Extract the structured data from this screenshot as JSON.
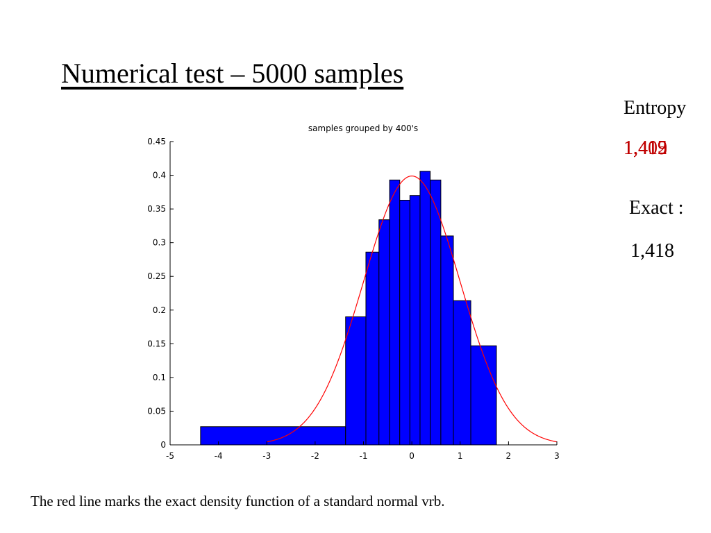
{
  "slide": {
    "title": "Numerical test – 5000 samples",
    "entropy_label": "Entropy",
    "entropy_values": [
      "1,419",
      "1,412",
      "1,415",
      "1,409"
    ],
    "exact_label": "Exact :",
    "exact_value": "1,418",
    "caption": "The red line marks the exact density function of a standard normal vrb."
  },
  "chart_data": {
    "type": "bar",
    "title": "samples grouped by 400's",
    "xlabel": "",
    "ylabel": "",
    "xlim": [
      -5,
      3
    ],
    "ylim": [
      0,
      0.45
    ],
    "xticks": [
      -5,
      -4,
      -3,
      -2,
      -1,
      0,
      1,
      2,
      3
    ],
    "yticks": [
      0,
      0.05,
      0.1,
      0.15,
      0.2,
      0.25,
      0.3,
      0.35,
      0.4,
      0.45
    ],
    "xtick_labels": [
      "-5",
      "-4",
      "-3",
      "-2",
      "-1",
      "0",
      "1",
      "2",
      "3"
    ],
    "ytick_labels": [
      "0",
      "0.05",
      "0.1",
      "0.15",
      "0.2",
      "0.25",
      "0.3",
      "0.35",
      "0.4",
      "0.45"
    ],
    "bar_color": "#0000ff",
    "line_color": "#ff0000",
    "bins": [
      {
        "x0": -4.37,
        "x1": -1.37,
        "value": 0.027
      },
      {
        "x0": -1.37,
        "x1": -0.95,
        "value": 0.19
      },
      {
        "x0": -0.95,
        "x1": -0.68,
        "value": 0.286
      },
      {
        "x0": -0.68,
        "x1": -0.46,
        "value": 0.334
      },
      {
        "x0": -0.46,
        "x1": -0.25,
        "value": 0.393
      },
      {
        "x0": -0.25,
        "x1": -0.04,
        "value": 0.363
      },
      {
        "x0": -0.04,
        "x1": 0.17,
        "value": 0.37
      },
      {
        "x0": 0.17,
        "x1": 0.38,
        "value": 0.406
      },
      {
        "x0": 0.38,
        "x1": 0.6,
        "value": 0.393
      },
      {
        "x0": 0.6,
        "x1": 0.86,
        "value": 0.31
      },
      {
        "x0": 0.86,
        "x1": 1.22,
        "value": 0.214
      },
      {
        "x0": 1.22,
        "x1": 1.75,
        "value": 0.147
      }
    ],
    "series": [
      {
        "type": "line",
        "function": "standard normal density",
        "x_range": [
          -3,
          3
        ]
      }
    ]
  }
}
